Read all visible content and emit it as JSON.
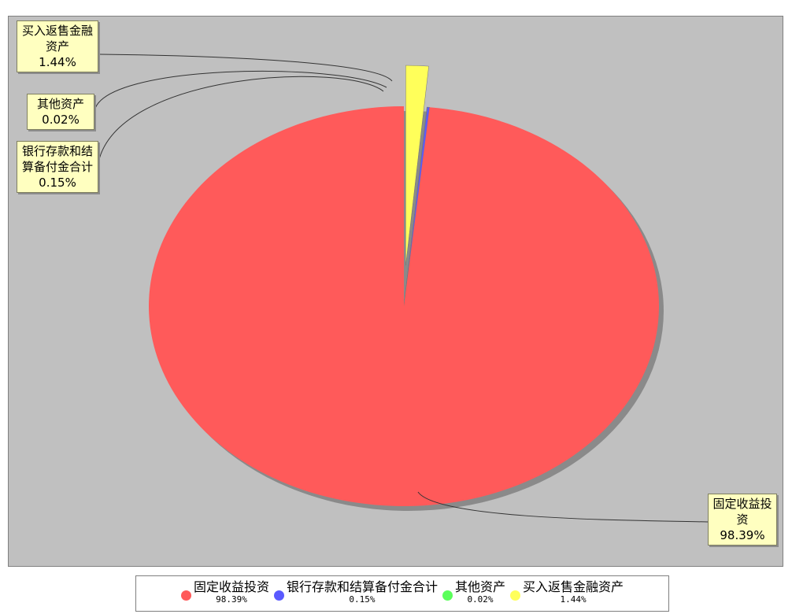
{
  "chart_data": {
    "type": "pie",
    "title": "",
    "slices": [
      {
        "name": "固定收益投资",
        "value": 98.39,
        "label": "98.39%",
        "legend_pct": "98.39%",
        "color": "#ff5a5a"
      },
      {
        "name": "银行存款和结算备付金合计",
        "value": 0.15,
        "label": "0.15%",
        "legend_pct": "0.15%",
        "color": "#5a5aff"
      },
      {
        "name": "其他资产",
        "value": 0.02,
        "label": "0.02%",
        "legend_pct": "0.02%",
        "color": "#5aff5a"
      },
      {
        "name": "买入返售金融资产",
        "value": 1.44,
        "label": "1.44%",
        "legend_pct": "1.44%",
        "color": "#ffff5a"
      }
    ],
    "legend_position": "bottom",
    "background_color": "#c0c0c0",
    "exploded_slice": "买入返售金融资产"
  }
}
